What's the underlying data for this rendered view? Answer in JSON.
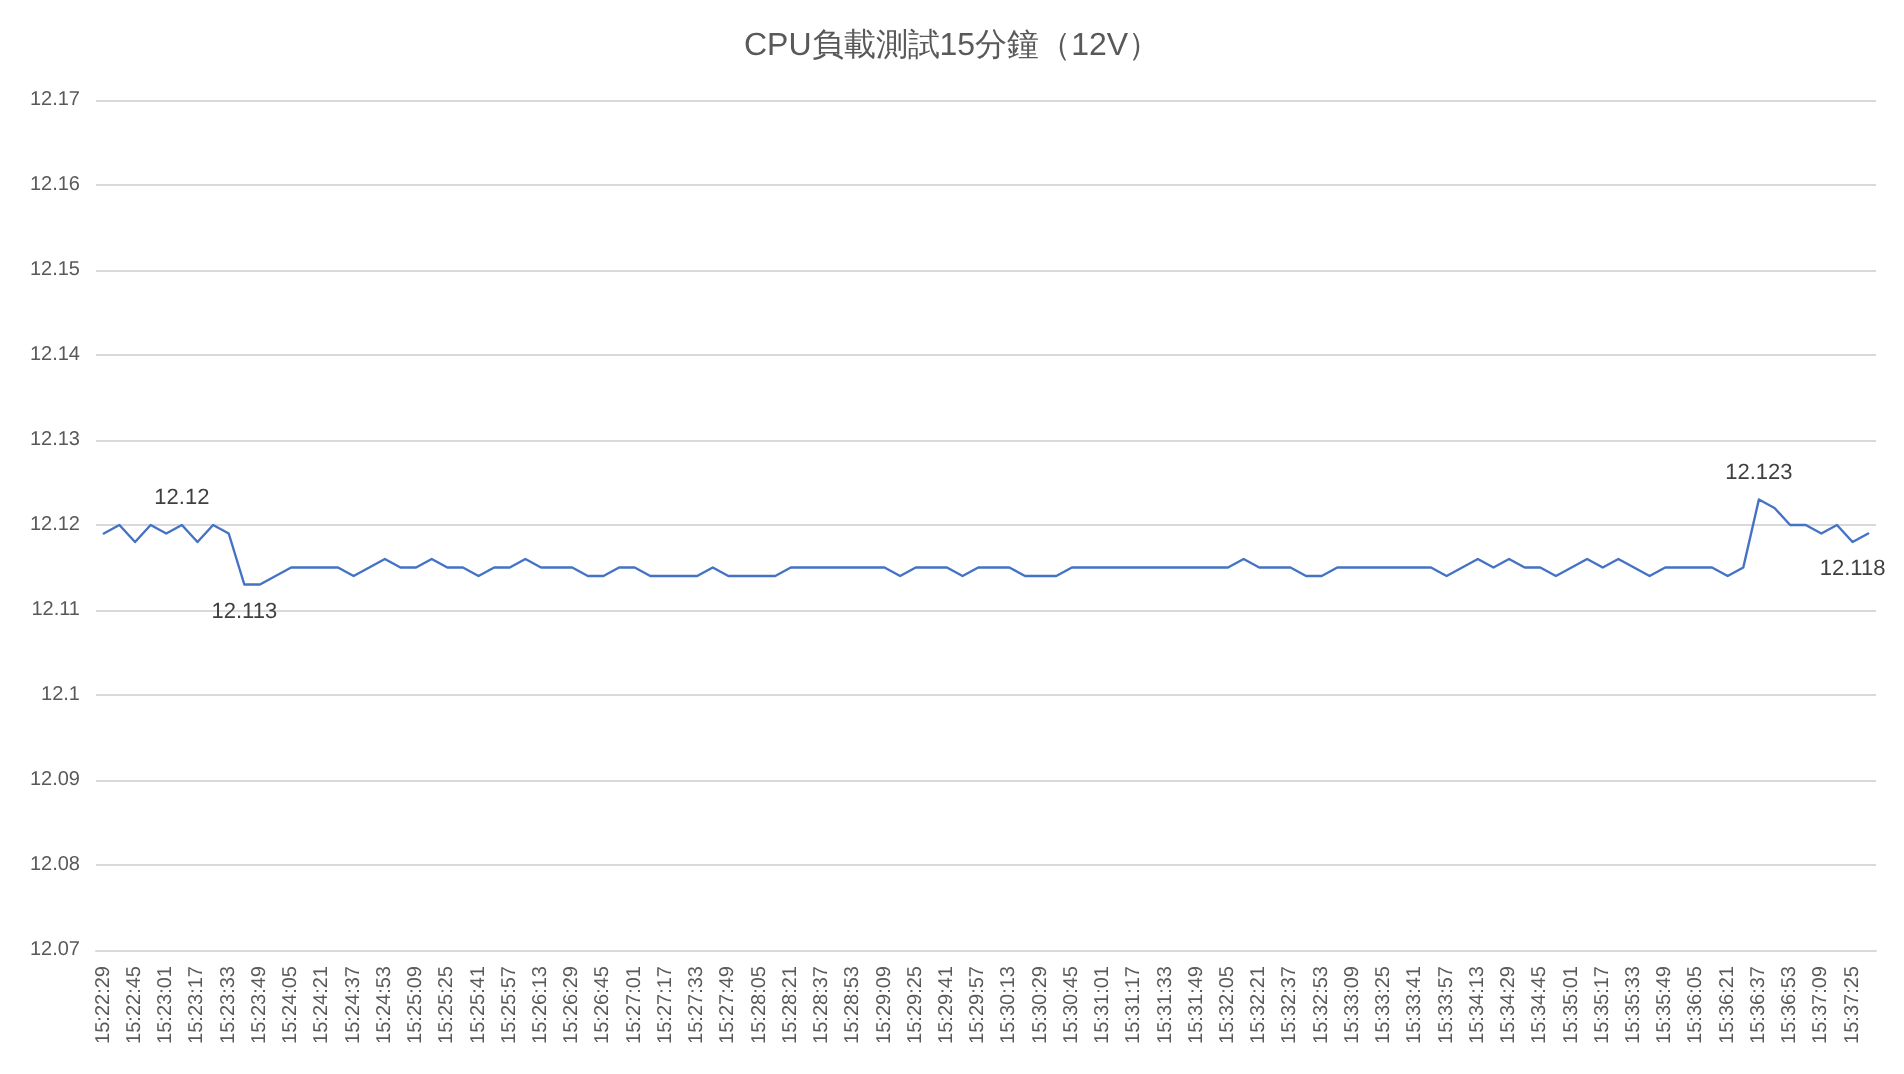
{
  "chart_data": {
    "type": "line",
    "title": "CPU負載測試15分鐘（12V）",
    "categories": [
      "15:22:29",
      null,
      "15:22:45",
      null,
      "15:23:01",
      null,
      "15:23:17",
      null,
      "15:23:33",
      null,
      "15:23:49",
      null,
      "15:24:05",
      null,
      "15:24:21",
      null,
      "15:24:37",
      null,
      "15:24:53",
      null,
      "15:25:09",
      null,
      "15:25:25",
      null,
      "15:25:41",
      null,
      "15:25:57",
      null,
      "15:26:13",
      null,
      "15:26:29",
      null,
      "15:26:45",
      null,
      "15:27:01",
      null,
      "15:27:17",
      null,
      "15:27:33",
      null,
      "15:27:49",
      null,
      "15:28:05",
      null,
      "15:28:21",
      null,
      "15:28:37",
      null,
      "15:28:53",
      null,
      "15:29:09",
      null,
      "15:29:25",
      null,
      "15:29:41",
      null,
      "15:29:57",
      null,
      "15:30:13",
      null,
      "15:30:29",
      null,
      "15:30:45",
      null,
      "15:31:01",
      null,
      "15:31:17",
      null,
      "15:31:33",
      null,
      "15:31:49",
      null,
      "15:32:05",
      null,
      "15:32:21",
      null,
      "15:32:37",
      null,
      "15:32:53",
      null,
      "15:33:09",
      null,
      "15:33:25",
      null,
      "15:33:41",
      null,
      "15:33:57",
      null,
      "15:34:13",
      null,
      "15:34:29",
      null,
      "15:34:45",
      null,
      "15:35:01",
      null,
      "15:35:17",
      null,
      "15:35:33",
      null,
      "15:35:49",
      null,
      "15:36:05",
      null,
      "15:36:21",
      null,
      "15:36:37",
      null,
      "15:36:53",
      null,
      "15:37:09",
      null,
      "15:37:25",
      null
    ],
    "series": [
      {
        "color": "#4472c4",
        "values": [
          12.119,
          12.12,
          12.118,
          12.12,
          12.119,
          12.12,
          12.118,
          12.12,
          12.119,
          12.113,
          12.113,
          12.114,
          12.115,
          12.115,
          12.115,
          12.115,
          12.114,
          12.115,
          12.116,
          12.115,
          12.115,
          12.116,
          12.115,
          12.115,
          12.114,
          12.115,
          12.115,
          12.116,
          12.115,
          12.115,
          12.115,
          12.114,
          12.114,
          12.115,
          12.115,
          12.114,
          12.114,
          12.114,
          12.114,
          12.115,
          12.114,
          12.114,
          12.114,
          12.114,
          12.115,
          12.115,
          12.115,
          12.115,
          12.115,
          12.115,
          12.115,
          12.114,
          12.115,
          12.115,
          12.115,
          12.114,
          12.115,
          12.115,
          12.115,
          12.114,
          12.114,
          12.114,
          12.115,
          12.115,
          12.115,
          12.115,
          12.115,
          12.115,
          12.115,
          12.115,
          12.115,
          12.115,
          12.115,
          12.116,
          12.115,
          12.115,
          12.115,
          12.114,
          12.114,
          12.115,
          12.115,
          12.115,
          12.115,
          12.115,
          12.115,
          12.115,
          12.114,
          12.115,
          12.116,
          12.115,
          12.116,
          12.115,
          12.115,
          12.114,
          12.115,
          12.116,
          12.115,
          12.116,
          12.115,
          12.114,
          12.115,
          12.115,
          12.115,
          12.115,
          12.114,
          12.115,
          12.123,
          12.122,
          12.12,
          12.12,
          12.119,
          12.12,
          12.118,
          12.119
        ],
        "value_labels": [
          null,
          null,
          null,
          null,
          null,
          "12.12",
          null,
          null,
          null,
          "12.113",
          null,
          null,
          null,
          null,
          null,
          null,
          null,
          null,
          null,
          null,
          null,
          null,
          null,
          null,
          null,
          null,
          null,
          null,
          null,
          null,
          null,
          null,
          null,
          null,
          null,
          null,
          null,
          null,
          null,
          null,
          null,
          null,
          null,
          null,
          null,
          null,
          null,
          null,
          null,
          null,
          null,
          null,
          null,
          null,
          null,
          null,
          null,
          null,
          null,
          null,
          null,
          null,
          null,
          null,
          null,
          null,
          null,
          null,
          null,
          null,
          null,
          null,
          null,
          null,
          null,
          null,
          null,
          null,
          null,
          null,
          null,
          null,
          null,
          null,
          null,
          null,
          null,
          null,
          null,
          null,
          null,
          null,
          null,
          null,
          null,
          null,
          null,
          null,
          null,
          null,
          null,
          null,
          null,
          null,
          null,
          null,
          "12.123",
          null,
          null,
          null,
          null,
          null,
          "12.118",
          null
        ]
      }
    ],
    "ylim": [
      12.07,
      12.17
    ],
    "yticks": [
      12.07,
      12.08,
      12.09,
      12.1,
      12.11,
      12.12,
      12.13,
      12.14,
      12.15,
      12.16,
      12.17
    ],
    "grid": "y"
  }
}
